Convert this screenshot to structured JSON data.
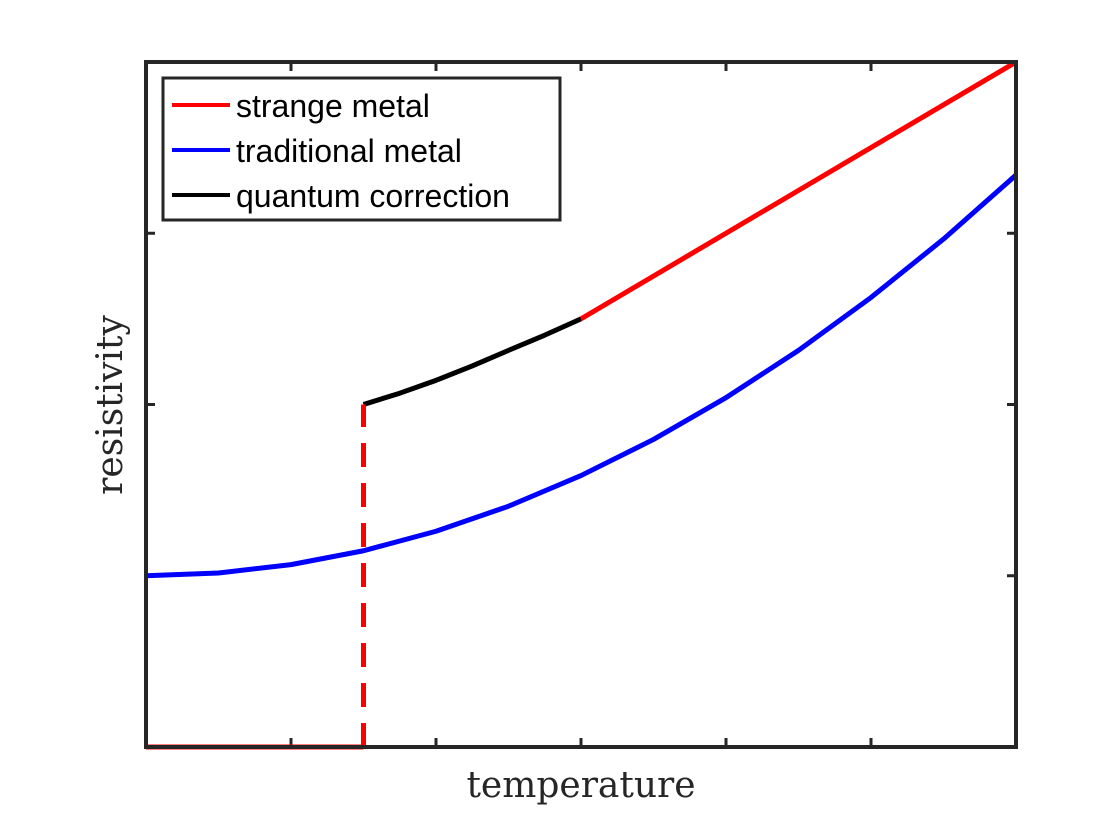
{
  "chart_data": {
    "type": "line",
    "title": "",
    "xlabel": "temperature",
    "ylabel": "resistivity",
    "xlim": [
      0,
      6
    ],
    "ylim": [
      0,
      4
    ],
    "x_ticks": [
      0,
      1,
      2,
      3,
      4,
      5,
      6
    ],
    "y_ticks": [
      0,
      1,
      2,
      3,
      4
    ],
    "tick_labels_shown": false,
    "grid": false,
    "legend_position": "top-left",
    "colors": {
      "axis": "#262626",
      "strange_metal": "#ff0000",
      "traditional_metal": "#0000ff",
      "quantum_correction": "#000000"
    },
    "series": [
      {
        "name": "strange metal",
        "color": "#ff0000",
        "style": "solid",
        "x": [
          3.0,
          6.0
        ],
        "y": [
          2.5,
          4.0
        ],
        "in_legend": true
      },
      {
        "name": "traditional metal",
        "color": "#0000ff",
        "style": "solid",
        "x": [
          0.0,
          0.5,
          1.0,
          1.5,
          2.0,
          2.5,
          3.0,
          3.5,
          4.0,
          4.5,
          5.0,
          5.5,
          6.0
        ],
        "y": [
          1.0,
          1.016,
          1.065,
          1.146,
          1.26,
          1.406,
          1.585,
          1.796,
          2.04,
          2.316,
          2.625,
          2.966,
          3.34
        ],
        "in_legend": true
      },
      {
        "name": "quantum correction",
        "color": "#000000",
        "style": "solid",
        "x": [
          1.5,
          1.75,
          2.0,
          2.25,
          2.5,
          2.75,
          3.0
        ],
        "y": [
          2.0,
          2.066,
          2.141,
          2.225,
          2.316,
          2.405,
          2.5
        ],
        "in_legend": true
      },
      {
        "name": "strange metal (zero resistance)",
        "color": "#ff0000",
        "style": "solid",
        "x": [
          0.0,
          1.5
        ],
        "y": [
          0.0,
          0.0
        ],
        "in_legend": false
      },
      {
        "name": "strange metal (transition)",
        "color": "#ff0000",
        "style": "dashed",
        "x": [
          1.5,
          1.5
        ],
        "y": [
          0.0,
          2.0
        ],
        "in_legend": false
      }
    ]
  }
}
